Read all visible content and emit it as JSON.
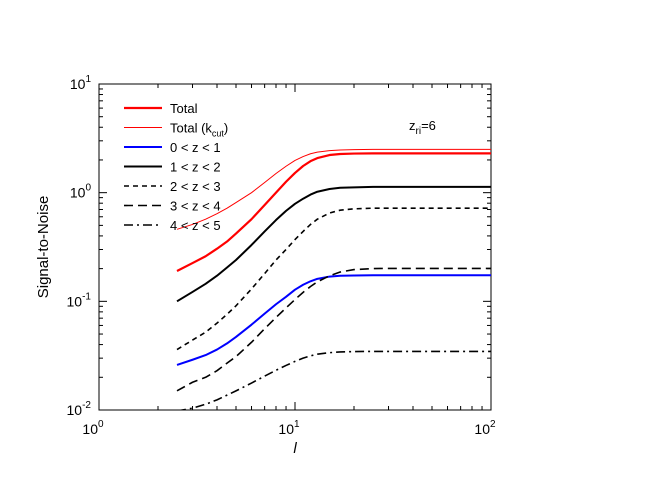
{
  "chart_data": {
    "type": "line",
    "xlabel": "l",
    "ylabel": "Signal-to-Noise",
    "xscale": "log",
    "yscale": "log",
    "xlim": [
      1,
      100
    ],
    "ylim": [
      0.01,
      10
    ],
    "grid": false,
    "legend_position": "top-left",
    "annotation": {
      "base": "z",
      "subscript": "ri",
      "suffix": "=6"
    },
    "x_ticks": [
      {
        "base": "10",
        "exp": "0",
        "value": 1
      },
      {
        "base": "10",
        "exp": "1",
        "value": 10
      },
      {
        "base": "10",
        "exp": "2",
        "value": 100
      }
    ],
    "y_ticks": [
      {
        "base": "10",
        "exp": "-2",
        "value": 0.01
      },
      {
        "base": "10",
        "exp": "-1",
        "value": 0.1
      },
      {
        "base": "10",
        "exp": "0",
        "value": 1
      },
      {
        "base": "10",
        "exp": "1",
        "value": 10
      }
    ],
    "x": [
      2.5,
      3,
      3.5,
      4,
      4.5,
      5,
      6,
      7,
      8,
      9,
      10,
      11,
      12,
      13,
      15,
      17,
      20,
      25,
      30,
      40,
      50,
      60,
      70,
      80,
      100
    ],
    "series": [
      {
        "key": "total",
        "label_main": "Total",
        "label_sub": "",
        "color": "#ff0000",
        "width": 2.2,
        "dash": "",
        "values": [
          0.19,
          0.225,
          0.26,
          0.305,
          0.355,
          0.42,
          0.57,
          0.77,
          1.0,
          1.26,
          1.52,
          1.76,
          1.95,
          2.08,
          2.22,
          2.27,
          2.29,
          2.3,
          2.3,
          2.3,
          2.3,
          2.3,
          2.3,
          2.3,
          2.3
        ]
      },
      {
        "key": "total-kcut",
        "label_main": "Total (k",
        "label_sub": "cut",
        "label_end": ")",
        "color": "#ff0000",
        "width": 1.0,
        "dash": "",
        "values": [
          0.46,
          0.51,
          0.57,
          0.64,
          0.72,
          0.81,
          1.0,
          1.24,
          1.5,
          1.75,
          1.98,
          2.15,
          2.28,
          2.36,
          2.44,
          2.47,
          2.49,
          2.5,
          2.5,
          2.5,
          2.5,
          2.5,
          2.5,
          2.5,
          2.5
        ]
      },
      {
        "key": "z01",
        "label_main": "0 < z < 1",
        "label_sub": "",
        "color": "#0000ff",
        "width": 2.0,
        "dash": "",
        "values": [
          0.026,
          0.029,
          0.032,
          0.036,
          0.041,
          0.047,
          0.061,
          0.077,
          0.094,
          0.11,
          0.128,
          0.142,
          0.153,
          0.161,
          0.169,
          0.172,
          0.173,
          0.174,
          0.174,
          0.174,
          0.174,
          0.174,
          0.174,
          0.174,
          0.174
        ]
      },
      {
        "key": "z12",
        "label_main": "1 < z < 2",
        "label_sub": "",
        "color": "#000000",
        "width": 2.0,
        "dash": "",
        "values": [
          0.1,
          0.122,
          0.145,
          0.172,
          0.205,
          0.24,
          0.33,
          0.44,
          0.56,
          0.68,
          0.79,
          0.88,
          0.96,
          1.02,
          1.08,
          1.11,
          1.12,
          1.13,
          1.13,
          1.13,
          1.13,
          1.13,
          1.13,
          1.13,
          1.13
        ]
      },
      {
        "key": "z23",
        "label_main": "2 < z < 3",
        "label_sub": "",
        "color": "#000000",
        "width": 1.6,
        "dash": "5,4",
        "values": [
          0.036,
          0.044,
          0.052,
          0.063,
          0.076,
          0.091,
          0.13,
          0.18,
          0.24,
          0.3,
          0.37,
          0.44,
          0.51,
          0.57,
          0.65,
          0.69,
          0.71,
          0.72,
          0.72,
          0.72,
          0.72,
          0.72,
          0.72,
          0.72,
          0.72
        ]
      },
      {
        "key": "z34",
        "label_main": "3 < z < 4",
        "label_sub": "",
        "color": "#000000",
        "width": 1.6,
        "dash": "9,5",
        "values": [
          0.015,
          0.018,
          0.02,
          0.023,
          0.027,
          0.031,
          0.042,
          0.056,
          0.071,
          0.087,
          0.104,
          0.121,
          0.137,
          0.151,
          0.172,
          0.186,
          0.196,
          0.2,
          0.201,
          0.201,
          0.201,
          0.201,
          0.201,
          0.201,
          0.201
        ]
      },
      {
        "key": "z45",
        "label_main": "4 < z < 5",
        "label_sub": "",
        "color": "#000000",
        "width": 1.6,
        "dash": "9,4,2,4",
        "values": [
          0.0098,
          0.0104,
          0.0113,
          0.0124,
          0.0137,
          0.015,
          0.0177,
          0.0205,
          0.0232,
          0.0257,
          0.028,
          0.03,
          0.0315,
          0.0326,
          0.0337,
          0.0342,
          0.0345,
          0.0346,
          0.0346,
          0.0346,
          0.0346,
          0.0346,
          0.0346,
          0.0346,
          0.0346
        ]
      }
    ]
  }
}
